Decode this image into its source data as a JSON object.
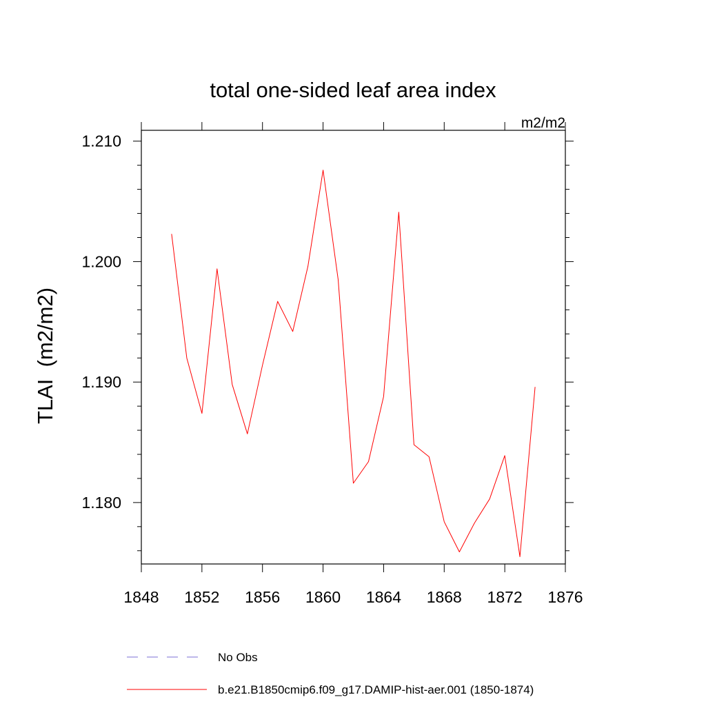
{
  "chart_data": {
    "type": "line",
    "title": "total one-sided leaf area index",
    "units": "m2/m2",
    "ylabel": "TLAI  (m2/m2)",
    "xlabel": "",
    "xlim": [
      1848,
      1876
    ],
    "ylim": [
      1.1749,
      1.2109
    ],
    "xticks": [
      1848,
      1852,
      1856,
      1860,
      1864,
      1868,
      1872,
      1876
    ],
    "xtick_labels": [
      "1848",
      "1852",
      "1856",
      "1860",
      "1864",
      "1868",
      "1872",
      "1876"
    ],
    "yticks": [
      1.18,
      1.19,
      1.2,
      1.21
    ],
    "ytick_labels": [
      "1.180",
      "1.190",
      "1.200",
      "1.210"
    ],
    "grid": false,
    "legend_position": "bottom",
    "series": [
      {
        "name": "No Obs",
        "color": "#7b6fd6",
        "dash": "dashed",
        "x": [],
        "y": []
      },
      {
        "name": "b.e21.B1850cmip6.f09_g17.DAMIP-hist-aer.001 (1850-1874)",
        "color": "#ff0000",
        "dash": "solid",
        "x": [
          1850,
          1851,
          1852,
          1853,
          1854,
          1855,
          1856,
          1857,
          1858,
          1859,
          1860,
          1861,
          1862,
          1863,
          1864,
          1865,
          1866,
          1867,
          1868,
          1869,
          1870,
          1871,
          1872,
          1873,
          1874
        ],
        "y": [
          1.2023,
          1.192,
          1.1874,
          1.1994,
          1.1898,
          1.1857,
          1.1914,
          1.1967,
          1.1942,
          1.1996,
          1.2076,
          1.1985,
          1.1816,
          1.1834,
          1.1888,
          1.2041,
          1.1848,
          1.1838,
          1.1784,
          1.1759,
          1.1783,
          1.1803,
          1.1839,
          1.1755,
          1.1896
        ]
      }
    ]
  }
}
